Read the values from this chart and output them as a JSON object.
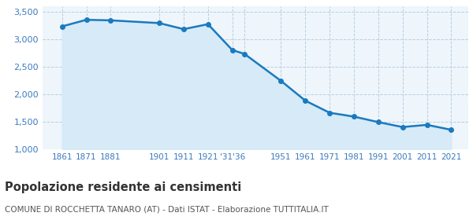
{
  "years": [
    1861,
    1871,
    1881,
    1901,
    1911,
    1921,
    1931,
    1936,
    1951,
    1961,
    1971,
    1981,
    1991,
    2001,
    2011,
    2021
  ],
  "population": [
    3240,
    3360,
    3350,
    3300,
    3190,
    3280,
    2810,
    2740,
    2250,
    1890,
    1670,
    1600,
    1500,
    1410,
    1450,
    1360
  ],
  "x_tick_labels": [
    "1861",
    "1871",
    "1881",
    "1901",
    "1911",
    "1921",
    "'31'36",
    "",
    "1951",
    "1961",
    "1971",
    "1981",
    "1991",
    "2001",
    "2011",
    "2021"
  ],
  "line_color": "#1a7abf",
  "fill_color": "#d6eaf8",
  "marker_color": "#1a7abf",
  "background_color": "#eef5fb",
  "grid_color": "#b8cfe0",
  "y_min": 1000,
  "y_max": 3600,
  "y_ticks": [
    1000,
    1500,
    2000,
    2500,
    3000,
    3500
  ],
  "title": "Popolazione residente ai censimenti",
  "subtitle": "COMUNE DI ROCCHETTA TANARO (AT) - Dati ISTAT - Elaborazione TUTTITALIA.IT",
  "title_color": "#333333",
  "subtitle_color": "#555555",
  "tick_color": "#3a7abf",
  "title_fontsize": 10.5,
  "subtitle_fontsize": 7.5
}
